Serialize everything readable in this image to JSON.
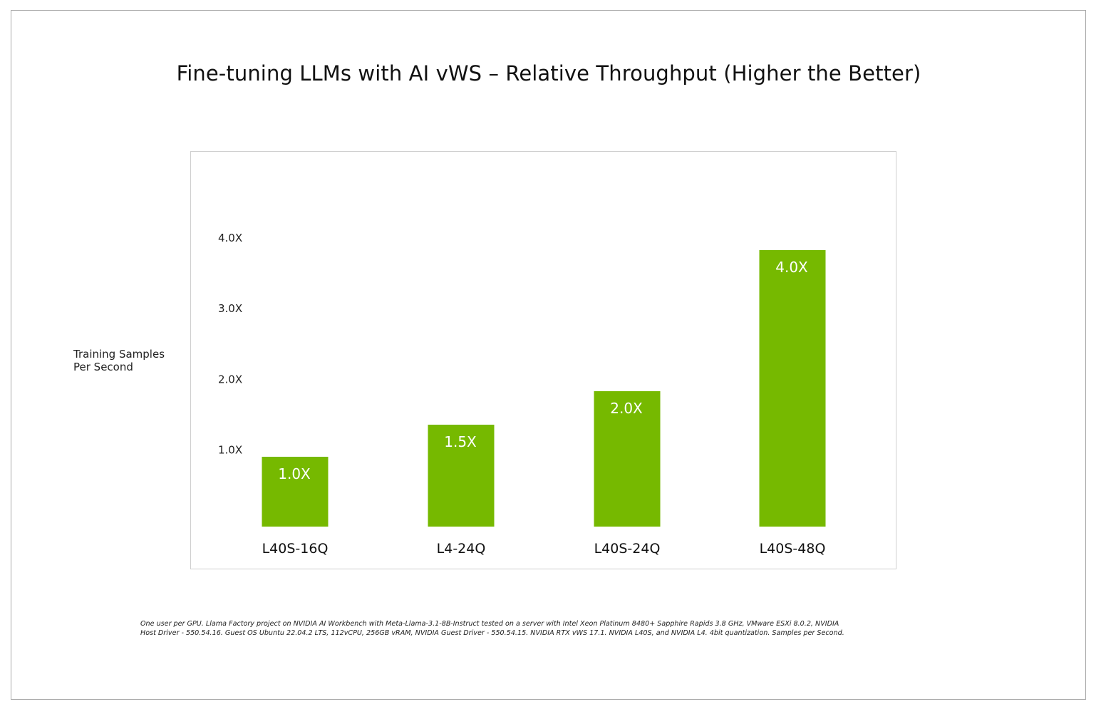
{
  "chart_data": {
    "type": "bar",
    "title": "Fine-tuning LLMs with AI vWS – Relative Throughput (Higher the Better)",
    "xlabel": "",
    "ylabel": "Training Samples Per Second",
    "ylabel_lines": [
      "Training Samples",
      "Per Second"
    ],
    "categories": [
      "L40S-16Q",
      "L4-24Q",
      "L40S-24Q",
      "L40S-48Q"
    ],
    "values": [
      1.0,
      1.5,
      2.0,
      4.0
    ],
    "data_labels": [
      "1.0X",
      "1.5X",
      "2.0X",
      "4.0X"
    ],
    "yticks": [
      1.0,
      2.0,
      3.0,
      4.0
    ],
    "ytick_labels": [
      "1.0X",
      "2.0X",
      "3.0X",
      "4.0X"
    ],
    "ylim": [
      0,
      4.0
    ],
    "grid": false,
    "legend": "none",
    "bar_color": "#76b900",
    "data_label_color": "#ffffff"
  },
  "footnote": {
    "lines": [
      "One user per GPU. Llama Factory project on NVIDIA AI Workbench with Meta-Llama-3.1-8B-Instruct tested on a server with Intel Xeon Platinum 8480+ Sapphire Rapids 3.8 GHz, VMware ESXi 8.0.2, NVIDIA",
      "Host Driver - 550.54.16. Guest OS Ubuntu 22.04.2 LTS, 112vCPU, 256GB vRAM, NVIDIA Guest Driver - 550.54.15. NVIDIA RTX vWS 17.1. NVIDIA L40S, and NVIDIA L4. 4bit quantization. Samples per Second."
    ]
  }
}
